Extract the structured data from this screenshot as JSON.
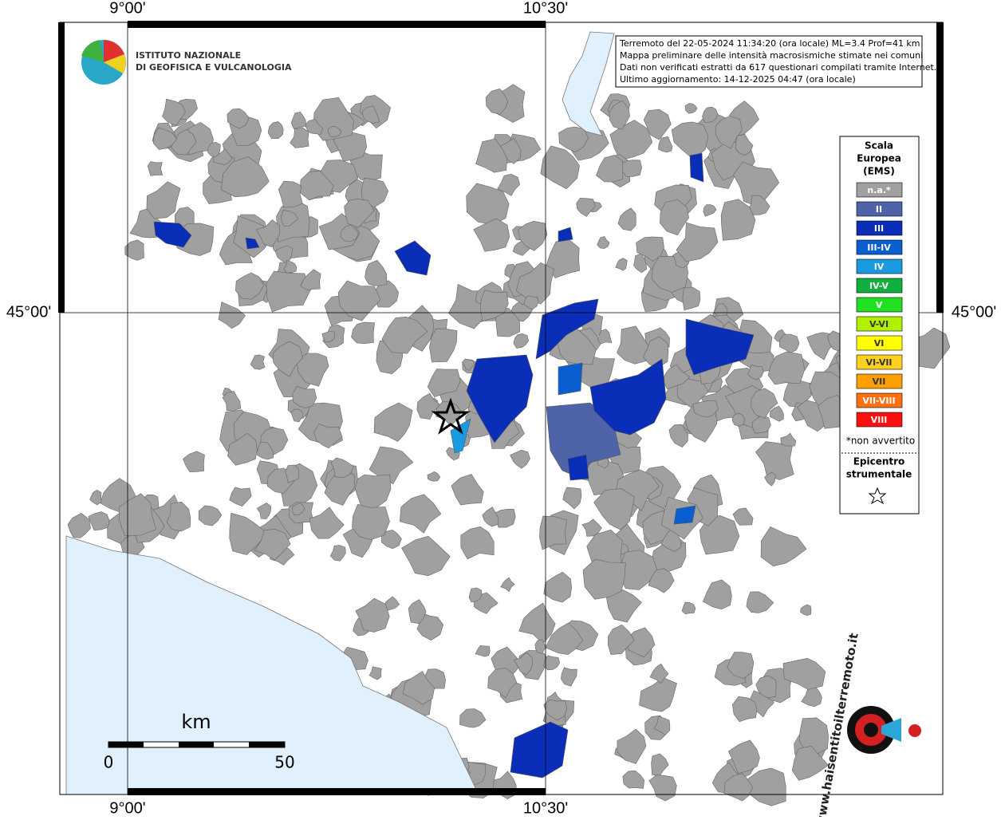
{
  "map": {
    "lon_labels": [
      "9°00'",
      "10°30'"
    ],
    "lat_label": "45°00'",
    "institute": [
      "ISTITUTO NAZIONALE",
      "DI GEOFISICA E VULCANOLOGIA"
    ],
    "info": [
      "Terremoto del 22-05-2024 11:34:20 (ora locale) ML=3.4 Prof=41 km",
      "Mappa preliminare delle intensità macrosismiche stimate nei comuni",
      "Dati non verificati estratti da 617 questionari compilati tramite Internet.",
      "Ultimo aggiornamento: 14-12-2025 04:47 (ora locale)"
    ],
    "legend": {
      "title": [
        "Scala",
        "Europea",
        "(EMS)"
      ],
      "items": [
        {
          "label": "n.a.*",
          "color": "#a0a0a0"
        },
        {
          "label": "II",
          "color": "#4f63a8"
        },
        {
          "label": "III",
          "color": "#0a2eb8"
        },
        {
          "label": "III-IV",
          "color": "#0a5fd0"
        },
        {
          "label": "IV",
          "color": "#1a9ae0"
        },
        {
          "label": "IV-V",
          "color": "#10b040"
        },
        {
          "label": "V",
          "color": "#20e020"
        },
        {
          "label": "V-VI",
          "color": "#b0f000"
        },
        {
          "label": "VI",
          "color": "#ffff00"
        },
        {
          "label": "VI-VII",
          "color": "#ffd020"
        },
        {
          "label": "VII",
          "color": "#ffa000"
        },
        {
          "label": "VII-VIII",
          "color": "#ff7010"
        },
        {
          "label": "VIII",
          "color": "#ff1010"
        }
      ],
      "note": "*non avvertito",
      "epicenter": [
        "Epicentro",
        "strumentale"
      ]
    },
    "scale": {
      "unit": "km",
      "start": "0",
      "end": "50"
    },
    "site": "www.haisentitoilterremoto.it"
  }
}
